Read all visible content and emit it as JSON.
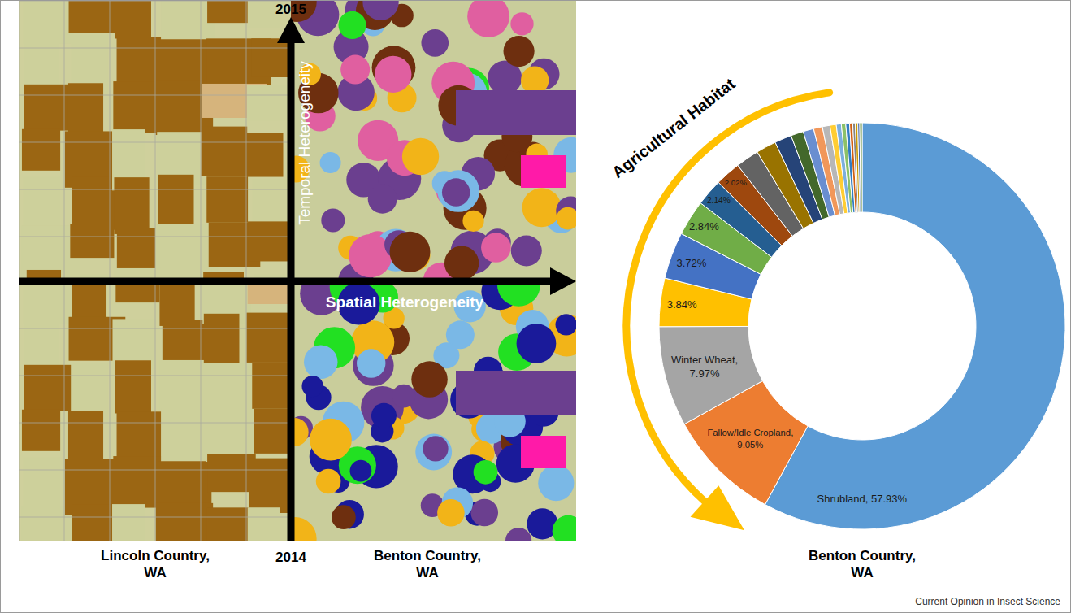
{
  "figure": {
    "left_panel": {
      "vertical_axis": {
        "top_label": "2015",
        "bottom_label": "2014",
        "title": "Temporal Heterogeneity"
      },
      "horizontal_axis": {
        "title": "Spatial Heterogeneity"
      },
      "left_caption": "Lincoln Country, WA",
      "right_caption": "Benton Country, WA"
    },
    "source": "Current Opinion in Insect Science"
  },
  "chart_data": {
    "type": "pie",
    "title": "Benton Country, WA",
    "annotations": [
      "Agricultural Habitat"
    ],
    "categories": [
      "Shrubland",
      "Fallow/Idle Cropland",
      "Winter Wheat",
      null,
      null,
      null,
      null,
      null,
      null,
      null,
      null,
      null,
      null,
      null,
      null,
      null,
      null,
      null,
      null,
      null,
      null,
      null,
      null,
      null
    ],
    "values": [
      57.93,
      9.05,
      7.97,
      3.84,
      3.72,
      2.84,
      2.14,
      2.02,
      1.85,
      1.6,
      1.35,
      1.0,
      0.85,
      0.7,
      0.6,
      0.5,
      0.4,
      0.35,
      0.3,
      0.25,
      0.2,
      0.2,
      0.15,
      0.19
    ],
    "value_labels": [
      "Shrubland, 57.93%",
      "Fallow/Idle Cropland, 9.05%",
      "Winter Wheat, 7.97%",
      "3.84%",
      "3.72%",
      "2.84%",
      "2.14%",
      "2.02%",
      null,
      null,
      null,
      null,
      null,
      null,
      null,
      null,
      null,
      null,
      null,
      null,
      null,
      null,
      null,
      null
    ],
    "colors": [
      "#5b9bd5",
      "#ed7d31",
      "#a5a5a5",
      "#ffc000",
      "#4472c4",
      "#70ad47",
      "#255e91",
      "#9e480e",
      "#636363",
      "#997300",
      "#264478",
      "#43682b",
      "#698ed0",
      "#f1975a",
      "#b7b7b7",
      "#ffcd33",
      "#7cafdd",
      "#8cc168",
      "#327dc2",
      "#d26012",
      "#848484",
      "#cc9a00",
      "#335aa1",
      "#5a8a39"
    ],
    "data_labels": true
  }
}
